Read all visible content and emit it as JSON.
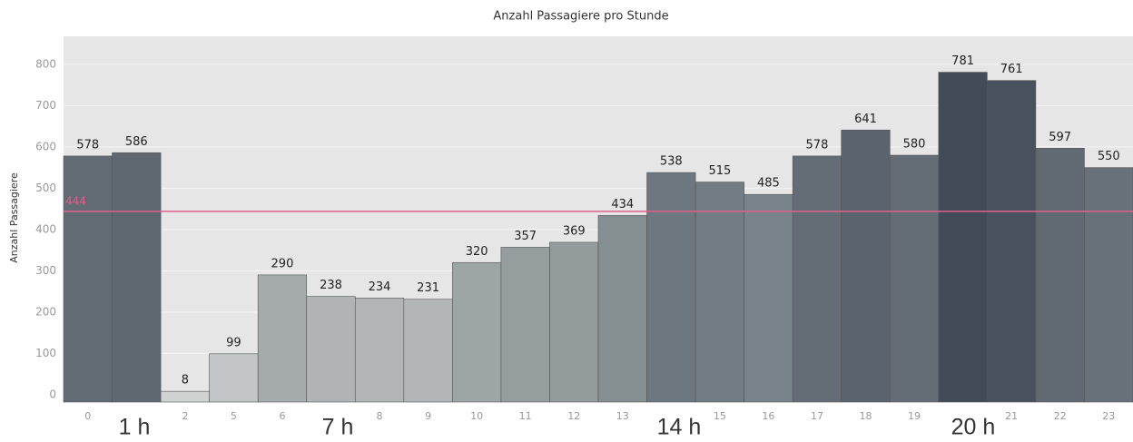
{
  "chart_data": {
    "type": "bar",
    "title": "Anzahl Passagiere pro Stunde",
    "y_label": "Anzahl Passagiere",
    "categories": [
      "0",
      null,
      "2",
      "5",
      "6",
      null,
      "8",
      "9",
      "10",
      "11",
      "12",
      "13",
      null,
      "15",
      "16",
      "17",
      "18",
      "19",
      null,
      "21",
      "22",
      "23"
    ],
    "values": [
      578,
      586,
      8,
      99,
      290,
      238,
      234,
      231,
      320,
      357,
      369,
      434,
      538,
      515,
      485,
      578,
      641,
      580,
      781,
      761,
      597,
      550
    ],
    "colors": [
      "#626b74",
      "#5f6770",
      "#d0d2d2",
      "#c3c6c6",
      "#a5abab",
      "#b0b4b4",
      "#b1b5b5",
      "#b2b6b6",
      "#9ea5a5",
      "#959d9d",
      "#939b9b",
      "#858e91",
      "#6d7780",
      "#727c83",
      "#79838a",
      "#646d76",
      "#5b636e",
      "#646d76",
      "#444b58",
      "#4a515e",
      "#616a73",
      "#687179"
    ],
    "ylim": [
      -18,
      868
    ],
    "yticks": [
      0,
      100,
      200,
      300,
      400,
      500,
      600,
      700,
      800
    ],
    "grid": true,
    "reference_line": {
      "value": 444,
      "color": "#e0608a"
    },
    "annotations": [
      "1 h",
      "7 h",
      "14 h",
      "20 h"
    ]
  }
}
